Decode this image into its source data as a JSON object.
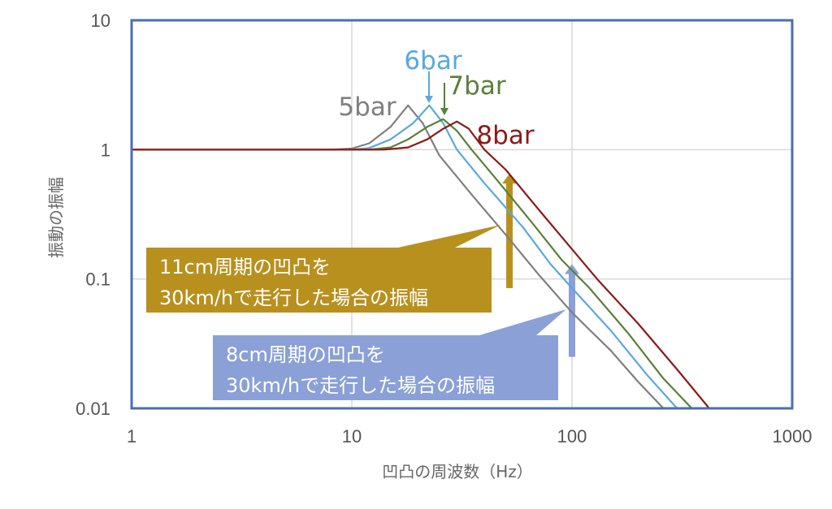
{
  "chart_data": {
    "type": "line",
    "xlabel": "凹凸の周波数（Hz）",
    "ylabel": "振動の振幅",
    "x_scale": "log",
    "y_scale": "log",
    "xlim": [
      1,
      1000
    ],
    "ylim": [
      0.01,
      10
    ],
    "x_ticks": [
      "1",
      "10",
      "100",
      "1000"
    ],
    "y_ticks": [
      "10",
      "1",
      "0.1",
      "0.01"
    ],
    "grid": true,
    "series": [
      {
        "name": "5bar",
        "color": "#7f7f7f",
        "points": [
          [
            1,
            1
          ],
          [
            8,
            1
          ],
          [
            10,
            1.02
          ],
          [
            12,
            1.12
          ],
          [
            15,
            1.5
          ],
          [
            18,
            2.2
          ],
          [
            21,
            1.6
          ],
          [
            25,
            0.9
          ],
          [
            35,
            0.45
          ],
          [
            50,
            0.22
          ],
          [
            70,
            0.11
          ],
          [
            100,
            0.055
          ],
          [
            150,
            0.028
          ],
          [
            200,
            0.016
          ],
          [
            260,
            0.01
          ]
        ]
      },
      {
        "name": "6bar",
        "color": "#5ba8dc",
        "points": [
          [
            1,
            1
          ],
          [
            10,
            1
          ],
          [
            12,
            1.03
          ],
          [
            15,
            1.2
          ],
          [
            19,
            1.6
          ],
          [
            22.5,
            2.2
          ],
          [
            26,
            1.6
          ],
          [
            30,
            1.0
          ],
          [
            40,
            0.55
          ],
          [
            60,
            0.25
          ],
          [
            80,
            0.13
          ],
          [
            100,
            0.085
          ],
          [
            150,
            0.04
          ],
          [
            220,
            0.018
          ],
          [
            300,
            0.01
          ]
        ]
      },
      {
        "name": "7bar",
        "color": "#5b7f3a",
        "points": [
          [
            1,
            1
          ],
          [
            12,
            1
          ],
          [
            15,
            1.04
          ],
          [
            18,
            1.2
          ],
          [
            22,
            1.5
          ],
          [
            26,
            1.72
          ],
          [
            30,
            1.4
          ],
          [
            35,
            1.0
          ],
          [
            45,
            0.6
          ],
          [
            65,
            0.28
          ],
          [
            90,
            0.14
          ],
          [
            120,
            0.085
          ],
          [
            180,
            0.038
          ],
          [
            260,
            0.017
          ],
          [
            350,
            0.01
          ]
        ]
      },
      {
        "name": "8bar",
        "color": "#8b1a1a",
        "points": [
          [
            1,
            1
          ],
          [
            14,
            1
          ],
          [
            18,
            1.04
          ],
          [
            22,
            1.2
          ],
          [
            26,
            1.45
          ],
          [
            30,
            1.65
          ],
          [
            34,
            1.45
          ],
          [
            40,
            1.0
          ],
          [
            50,
            0.7
          ],
          [
            70,
            0.35
          ],
          [
            100,
            0.17
          ],
          [
            130,
            0.1
          ],
          [
            200,
            0.045
          ],
          [
            300,
            0.02
          ],
          [
            420,
            0.01
          ]
        ]
      }
    ],
    "annotations": [
      {
        "text_lines": [
          "11cm周期の凹凸を",
          "30km/hで走行した場合の振幅"
        ],
        "color": "#b8901e",
        "target_x": 52,
        "arrow_from_y": 0.085,
        "arrow_to_y": 0.65
      },
      {
        "text_lines": [
          "8cm周期の凹凸を",
          "30km/hで走行した場合の振幅"
        ],
        "color": "#8aa0d6",
        "target_x": 100,
        "arrow_from_y": 0.025,
        "arrow_to_y": 0.13
      }
    ]
  }
}
